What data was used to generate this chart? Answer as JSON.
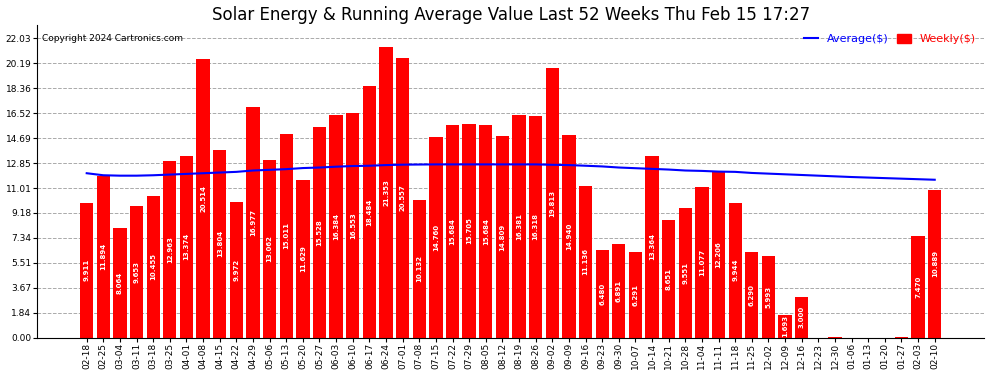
{
  "title": "Solar Energy & Running Average Value Last 52 Weeks Thu Feb 15 17:27",
  "copyright": "Copyright 2024 Cartronics.com",
  "legend_average": "Average($)",
  "legend_weekly": "Weekly($)",
  "categories": [
    "02-18",
    "02-25",
    "03-04",
    "03-11",
    "03-18",
    "03-25",
    "04-01",
    "04-08",
    "04-15",
    "04-22",
    "04-29",
    "05-06",
    "05-13",
    "05-20",
    "05-27",
    "06-03",
    "06-10",
    "06-17",
    "06-24",
    "07-01",
    "07-08",
    "07-15",
    "07-22",
    "07-29",
    "08-05",
    "08-12",
    "08-19",
    "08-26",
    "09-02",
    "09-09",
    "09-16",
    "09-23",
    "09-30",
    "10-07",
    "10-14",
    "10-21",
    "10-28",
    "11-04",
    "11-11",
    "11-18",
    "11-25",
    "12-02",
    "12-09",
    "12-16",
    "12-23",
    "12-30",
    "01-06",
    "01-13",
    "01-20",
    "01-27",
    "02-03",
    "02-10"
  ],
  "weekly_values": [
    9.911,
    11.894,
    8.064,
    9.653,
    10.455,
    12.963,
    13.374,
    20.514,
    13.804,
    9.972,
    16.977,
    13.062,
    15.011,
    11.629,
    15.528,
    16.384,
    16.553,
    18.484,
    21.353,
    20.557,
    10.132,
    14.76,
    15.684,
    15.705,
    15.684,
    14.809,
    16.381,
    16.318,
    19.813,
    14.94,
    11.136,
    6.48,
    6.891,
    6.291,
    13.364,
    8.651,
    9.551,
    11.077,
    12.206,
    9.944,
    6.29,
    5.993,
    1.693,
    3.0,
    0.0,
    0.013,
    0.0,
    0.0,
    0.0,
    0.013,
    7.47,
    10.889
  ],
  "average_values": [
    12.1,
    11.95,
    11.92,
    11.92,
    11.95,
    12.0,
    12.05,
    12.1,
    12.15,
    12.2,
    12.3,
    12.35,
    12.4,
    12.48,
    12.52,
    12.58,
    12.63,
    12.65,
    12.7,
    12.73,
    12.74,
    12.75,
    12.75,
    12.75,
    12.75,
    12.75,
    12.75,
    12.75,
    12.72,
    12.7,
    12.65,
    12.6,
    12.52,
    12.47,
    12.42,
    12.37,
    12.3,
    12.27,
    12.22,
    12.2,
    12.12,
    12.07,
    12.02,
    11.97,
    11.92,
    11.87,
    11.82,
    11.78,
    11.74,
    11.7,
    11.66,
    11.62
  ],
  "bar_color": "#ff0000",
  "avg_line_color": "#0000ff",
  "weekly_label_color": "#ff0000",
  "avg_label_color": "#0000ff",
  "background_color": "#ffffff",
  "grid_color": "#aaaaaa",
  "yticks": [
    0.0,
    1.84,
    3.67,
    5.51,
    7.34,
    9.18,
    11.01,
    12.85,
    14.69,
    16.52,
    18.36,
    20.19,
    22.03
  ],
  "ylim": [
    0,
    23.0
  ],
  "title_fontsize": 12,
  "tick_fontsize": 6.5,
  "value_fontsize": 5.0
}
